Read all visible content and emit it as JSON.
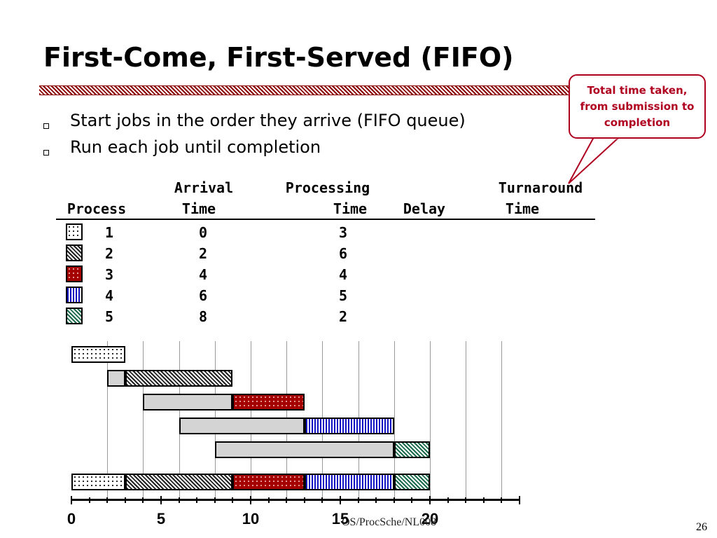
{
  "slide": {
    "title": "First-Come, First-Served (FIFO)",
    "bullets": [
      "Start jobs in the order they arrive (FIFO queue)",
      "Run each job until completion"
    ],
    "callout": {
      "line1": "Total time taken,",
      "line2": "from submission to",
      "line3": "completion"
    },
    "footer": "OS/ProcSche/NL008",
    "page_number": "26"
  },
  "table": {
    "headers": {
      "process": "Process",
      "arrival_1": "Arrival",
      "arrival_2": "Time",
      "processing_1": "Processing",
      "processing_2": "Time",
      "delay": "Delay",
      "turnaround_1": "Turnaround",
      "turnaround_2": "Time"
    },
    "rows": [
      {
        "process": "1",
        "arrival": "0",
        "processing": "3"
      },
      {
        "process": "2",
        "arrival": "2",
        "processing": "6"
      },
      {
        "process": "3",
        "arrival": "4",
        "processing": "4"
      },
      {
        "process": "4",
        "arrival": "6",
        "processing": "5"
      },
      {
        "process": "5",
        "arrival": "8",
        "processing": "2"
      }
    ]
  },
  "chart_data": {
    "type": "gantt",
    "x_range": [
      0,
      25
    ],
    "tick_labels": [
      "0",
      "5",
      "10",
      "15",
      "20"
    ],
    "jobs": [
      {
        "id": 1,
        "arrival": 0,
        "start": 0,
        "end": 3,
        "pattern": "dots-white"
      },
      {
        "id": 2,
        "arrival": 2,
        "start": 3,
        "end": 9,
        "pattern": "diagonal-black"
      },
      {
        "id": 3,
        "arrival": 4,
        "start": 9,
        "end": 13,
        "pattern": "dots-red"
      },
      {
        "id": 4,
        "arrival": 6,
        "start": 13,
        "end": 18,
        "pattern": "vertical-blue"
      },
      {
        "id": 5,
        "arrival": 8,
        "start": 18,
        "end": 20,
        "pattern": "diagonal-green"
      }
    ],
    "colors": {
      "accent": "#b00020",
      "wait": "#d4d4d4",
      "job3": "#a50000",
      "job4": "#1010c0",
      "job5": "#1a6b4a"
    }
  }
}
